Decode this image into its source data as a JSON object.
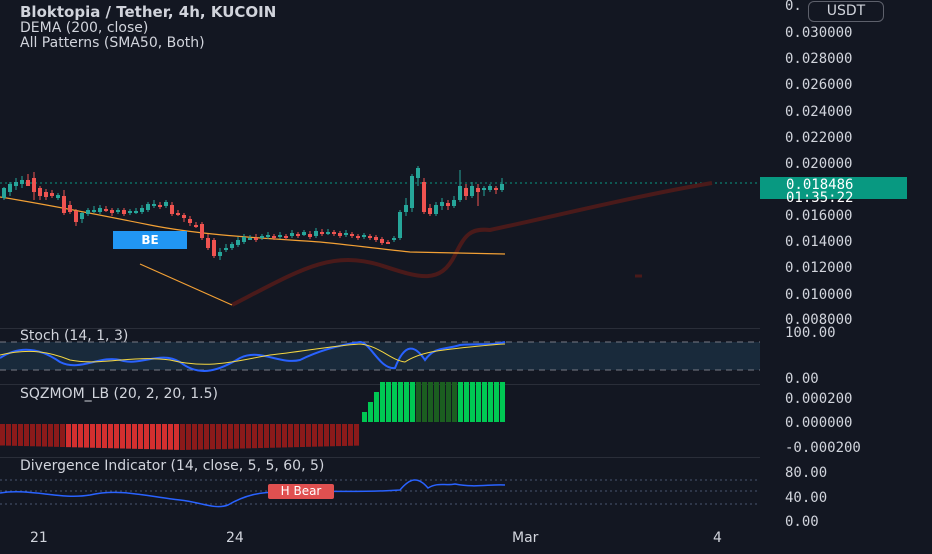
{
  "legend": {
    "title": "Bloktopia / Tether, 4h, KUCOIN",
    "indicator_1": "DEMA (200, close)",
    "indicator_2": "All Patterns (SMA50, Both)"
  },
  "currency_button": "USDT",
  "price_axis": {
    "top_fragment": "0.",
    "labels": [
      "0.030000",
      "0.028000",
      "0.026000",
      "0.024000",
      "0.022000",
      "0.020000",
      "0.016000",
      "0.014000",
      "0.012000",
      "0.010000",
      "0.008000"
    ]
  },
  "last_price": {
    "value": "0.018486",
    "countdown": "01:35:22"
  },
  "pattern_tag": "BE",
  "stoch": {
    "label": "Stoch (14, 1, 3)",
    "axis": [
      "100.00",
      "0.00"
    ]
  },
  "sqzmom": {
    "label": "SQZMOM_LB (20, 2, 20, 1.5)",
    "axis": [
      "0.000200",
      "0.000000",
      "-0.000200"
    ]
  },
  "divergence": {
    "label": "Divergence Indicator (14, close, 5, 5, 60, 5)",
    "axis": [
      "80.00",
      "40.00",
      "0.00"
    ],
    "tag": "H Bear"
  },
  "time_axis": [
    "21",
    "24",
    "Mar",
    "4"
  ],
  "colors": {
    "up": "#26a69a",
    "down": "#ef5350",
    "dema": "#f2a035",
    "background": "#131722",
    "price_tag": "#089981",
    "stoch_k": "#2962ff",
    "stoch_d": "#f5d742"
  }
}
